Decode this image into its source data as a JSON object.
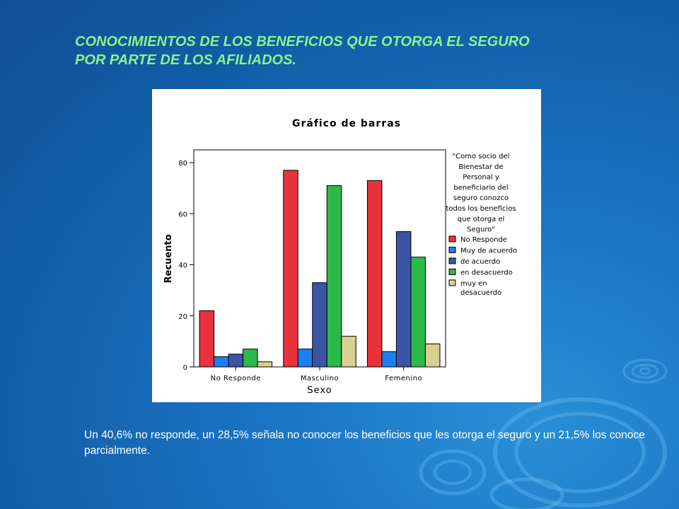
{
  "slide": {
    "title_line1": "CONOCIMIENTOS DE LOS BENEFICIOS QUE OTORGA EL SEGURO",
    "title_line2": "POR PARTE DE LOS AFILIADOS.",
    "caption": "Un 40,6% no responde, un 28,5% señala no conocer los beneficios que les otorga el seguro y un 21,5% los conoce parcialmente."
  },
  "chart_data": {
    "type": "bar",
    "title": "Gráfico de barras",
    "xlabel": "Sexo",
    "ylabel": "Recuento",
    "ylim": [
      0,
      85
    ],
    "yticks": [
      0,
      20,
      40,
      60,
      80
    ],
    "categories": [
      "No Responde",
      "Masculino",
      "Femenino"
    ],
    "legend_title_lines": [
      "\"Como socio del",
      "Bienestar de",
      "Personal y",
      "beneficiario del",
      "seguro conozco",
      "todos los beneficios",
      "que otorga el",
      "Seguro\""
    ],
    "legend_position": "right",
    "series": [
      {
        "name": "No Responde",
        "color": "#e8323c",
        "values": [
          22,
          77,
          73
        ]
      },
      {
        "name": "Muy de acuerdo",
        "color": "#1a7ff0",
        "values": [
          4,
          7,
          6
        ]
      },
      {
        "name": "de acuerdo",
        "color": "#3a55a6",
        "values": [
          5,
          33,
          53
        ]
      },
      {
        "name": "en desacuerdo",
        "color": "#2db84a",
        "values": [
          7,
          71,
          43
        ]
      },
      {
        "name": "muy en desacuerdo",
        "color": "#d9cf92",
        "values": [
          2,
          12,
          9
        ]
      }
    ],
    "legend_labels": [
      [
        "No Responde"
      ],
      [
        "Muy de acuerdo"
      ],
      [
        "de acuerdo"
      ],
      [
        "en desacuerdo"
      ],
      [
        "muy en",
        "desacuerdo"
      ]
    ]
  }
}
